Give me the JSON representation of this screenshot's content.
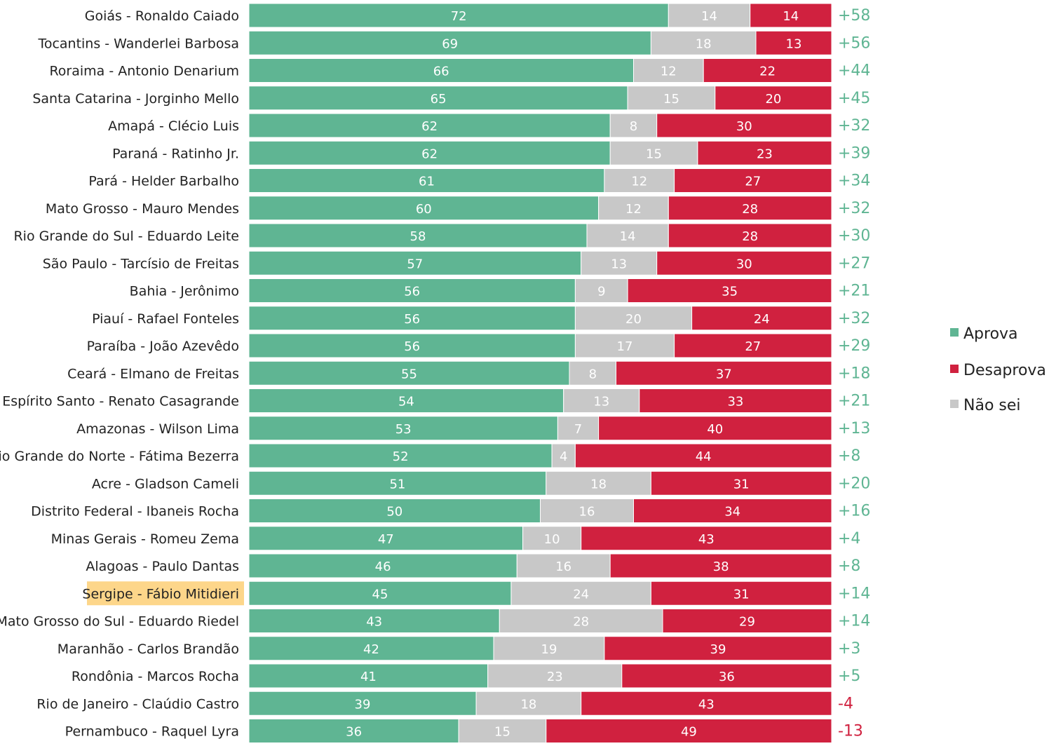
{
  "chart_data": {
    "type": "bar",
    "orientation": "horizontal",
    "stacked": true,
    "xlim": [
      0,
      100
    ],
    "grid": false,
    "legend_position": "right",
    "categories": [
      "Goiás - Ronaldo Caiado",
      "Tocantins - Wanderlei Barbosa",
      "Roraima - Antonio Denarium",
      "Santa Catarina - Jorginho Mello",
      "Amapá - Clécio Luis",
      "Paraná - Ratinho Jr.",
      "Pará - Helder Barbalho",
      "Mato Grosso - Mauro Mendes",
      "Rio Grande do Sul - Eduardo Leite",
      "São Paulo - Tarcísio de Freitas",
      "Bahia - Jerônimo",
      "Piauí - Rafael Fonteles",
      "Paraíba - João Azevêdo",
      "Ceará - Elmano de Freitas",
      "Espírito Santo - Renato Casagrande",
      "Amazonas - Wilson Lima",
      "Rio Grande do Norte - Fátima Bezerra",
      "Acre - Gladson Cameli",
      "Distrito Federal - Ibaneis Rocha",
      "Minas Gerais - Romeu Zema",
      "Alagoas - Paulo Dantas",
      "Sergipe - Fábio Mitidieri",
      "Mato Grosso do Sul - Eduardo Riedel",
      "Maranhão - Carlos Brandão",
      "Rondônia - Marcos Rocha",
      "Rio de Janeiro - Claúdio Castro",
      "Pernambuco - Raquel Lyra"
    ],
    "highlighted_category": "Sergipe - Fábio Mitidieri",
    "series": [
      {
        "name": "Aprova",
        "color": "#5fb593",
        "values": [
          72,
          69,
          66,
          65,
          62,
          62,
          61,
          60,
          58,
          57,
          56,
          56,
          56,
          55,
          54,
          53,
          52,
          51,
          50,
          47,
          46,
          45,
          43,
          42,
          41,
          39,
          36
        ]
      },
      {
        "name": "Não sei",
        "color": "#c8c8c8",
        "values": [
          14,
          18,
          12,
          15,
          8,
          15,
          12,
          12,
          14,
          13,
          9,
          20,
          17,
          8,
          13,
          7,
          4,
          18,
          16,
          10,
          16,
          24,
          28,
          19,
          23,
          18,
          15
        ]
      },
      {
        "name": "Desaprova",
        "color": "#d0213f",
        "values": [
          14,
          13,
          22,
          20,
          30,
          23,
          27,
          28,
          28,
          30,
          35,
          24,
          27,
          37,
          33,
          40,
          44,
          31,
          34,
          43,
          38,
          31,
          29,
          39,
          36,
          43,
          49
        ]
      }
    ],
    "net_labels": [
      "+58",
      "+56",
      "+44",
      "+45",
      "+32",
      "+39",
      "+34",
      "+32",
      "+30",
      "+27",
      "+21",
      "+32",
      "+29",
      "+18",
      "+21",
      "+13",
      "+8",
      "+20",
      "+16",
      "+4",
      "+8",
      "+14",
      "+14",
      "+3",
      "+5",
      "-4",
      "-13"
    ],
    "legend": [
      "Aprova",
      "Desaprova",
      "Não sei"
    ],
    "colors": {
      "positive": "#5fb593",
      "negative": "#d0213f",
      "highlight": "#fdd68a"
    }
  }
}
